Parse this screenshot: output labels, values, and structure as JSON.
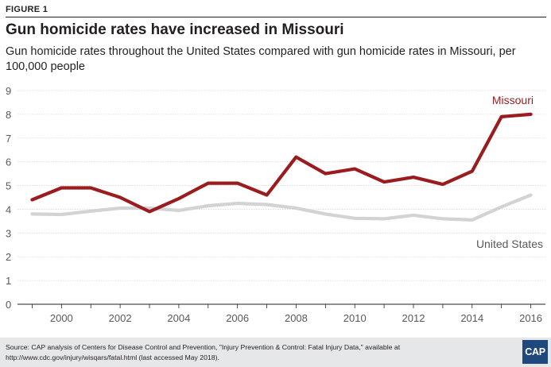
{
  "figure_label": "FIGURE 1",
  "title": "Gun homicide rates have increased in Missouri",
  "subtitle": "Gun homicide rates throughout the United States compared with gun homicide rates in Missouri, per 100,000 people",
  "source": "Source: CAP analysis of Centers for Disease Control and Prevention, \"Injury Prevention & Control: Fatal Injury Data,\" available at http://www.cdc.gov/injury/wisqars/fatal.html (last accessed May 2018).",
  "logo_text": "CAP",
  "colors": {
    "missouri": "#9b1c1f",
    "united_states": "#d1d3d4",
    "footer_bg": "#e6e7e8",
    "logo_bg": "#1f497d"
  },
  "chart_data": {
    "type": "line",
    "title": "Gun homicide rates have increased in Missouri",
    "xlabel": "",
    "ylabel": "",
    "x": [
      1999,
      2000,
      2001,
      2002,
      2003,
      2004,
      2005,
      2006,
      2007,
      2008,
      2009,
      2010,
      2011,
      2012,
      2013,
      2014,
      2015,
      2016
    ],
    "xticks": [
      "2000",
      "2002",
      "2004",
      "2006",
      "2008",
      "2010",
      "2012",
      "2014",
      "2016"
    ],
    "yticks": [
      "0",
      "1",
      "2",
      "3",
      "4",
      "5",
      "6",
      "7",
      "8",
      "9"
    ],
    "ylim": [
      0,
      9
    ],
    "grid": true,
    "series": [
      {
        "name": "Missouri",
        "values": [
          4.4,
          4.9,
          4.9,
          4.5,
          3.9,
          4.45,
          5.1,
          5.1,
          4.6,
          6.2,
          5.5,
          5.7,
          5.15,
          5.35,
          5.05,
          5.6,
          7.9,
          8.0
        ]
      },
      {
        "name": "United States",
        "values": [
          3.8,
          3.78,
          3.92,
          4.05,
          4.05,
          3.95,
          4.15,
          4.25,
          4.2,
          4.05,
          3.8,
          3.62,
          3.6,
          3.75,
          3.6,
          3.55,
          4.1,
          4.6
        ]
      }
    ]
  }
}
